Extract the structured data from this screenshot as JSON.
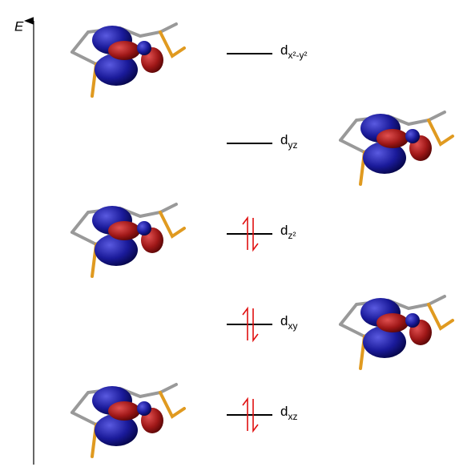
{
  "axis": {
    "label": "E"
  },
  "levels": [
    {
      "base": "d",
      "subscript": "x²-y²",
      "occupied": false
    },
    {
      "base": "d",
      "subscript": "yz",
      "occupied": false
    },
    {
      "base": "d",
      "subscript": "z²",
      "occupied": true
    },
    {
      "base": "d",
      "subscript": "xy",
      "occupied": true
    },
    {
      "base": "d",
      "subscript": "xz",
      "occupied": true
    }
  ]
}
